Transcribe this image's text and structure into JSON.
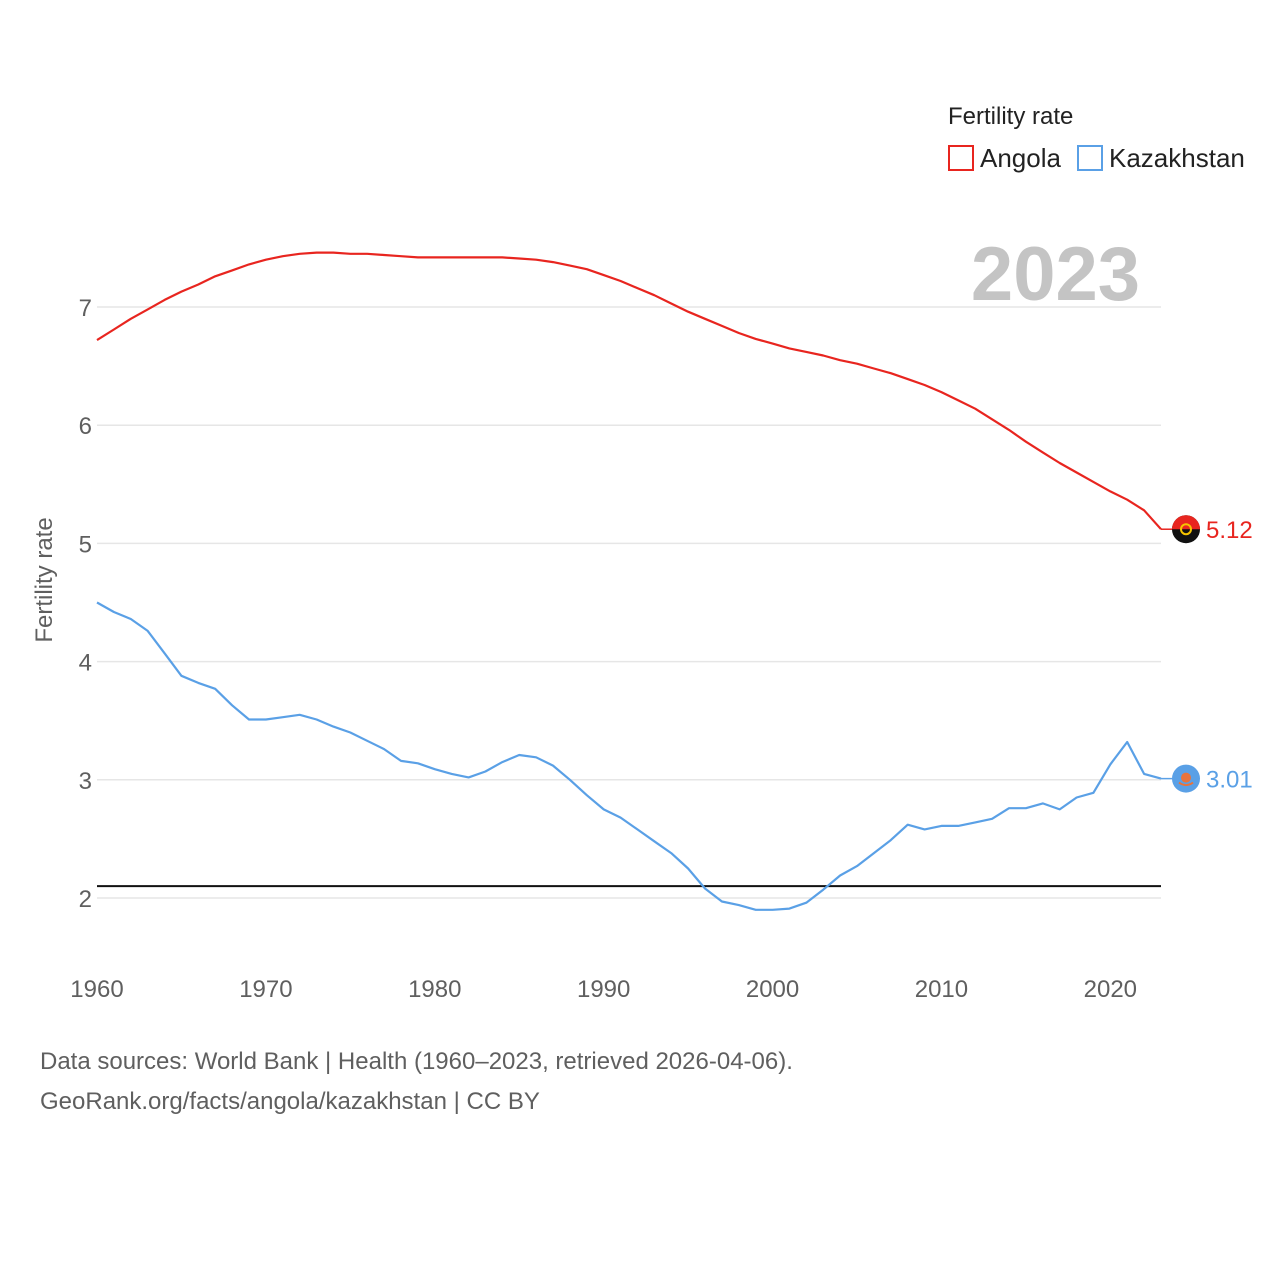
{
  "chart_data": {
    "type": "line",
    "title": "",
    "ylabel": "Fertility rate",
    "xlabel": "",
    "xlim": [
      1960,
      2023
    ],
    "ylim": [
      1.5,
      7.8
    ],
    "y_ticks": [
      2,
      3,
      4,
      5,
      6,
      7
    ],
    "x_ticks": [
      1960,
      1970,
      1980,
      1990,
      2000,
      2010,
      2020
    ],
    "grid": true,
    "reference_line": {
      "y": 2.1,
      "color": "#111111"
    },
    "legend": {
      "title": "Fertility rate",
      "position": "top-right",
      "entries": [
        {
          "name": "Angola",
          "color": "#e8251f"
        },
        {
          "name": "Kazakhstan",
          "color": "#5aa0e6"
        }
      ]
    },
    "year_overlay": "2023",
    "x": [
      1960,
      1961,
      1962,
      1963,
      1964,
      1965,
      1966,
      1967,
      1968,
      1969,
      1970,
      1971,
      1972,
      1973,
      1974,
      1975,
      1976,
      1977,
      1978,
      1979,
      1980,
      1981,
      1982,
      1983,
      1984,
      1985,
      1986,
      1987,
      1988,
      1989,
      1990,
      1991,
      1992,
      1993,
      1994,
      1995,
      1996,
      1997,
      1998,
      1999,
      2000,
      2001,
      2002,
      2003,
      2004,
      2005,
      2006,
      2007,
      2008,
      2009,
      2010,
      2011,
      2012,
      2013,
      2014,
      2015,
      2016,
      2017,
      2018,
      2019,
      2020,
      2021,
      2022,
      2023
    ],
    "series": [
      {
        "name": "Angola",
        "color": "#e8251f",
        "end_label": "5.12",
        "values": [
          6.72,
          6.81,
          6.9,
          6.98,
          7.06,
          7.13,
          7.19,
          7.26,
          7.31,
          7.36,
          7.4,
          7.43,
          7.45,
          7.46,
          7.46,
          7.45,
          7.45,
          7.44,
          7.43,
          7.42,
          7.42,
          7.42,
          7.42,
          7.42,
          7.42,
          7.41,
          7.4,
          7.38,
          7.35,
          7.32,
          7.27,
          7.22,
          7.16,
          7.1,
          7.03,
          6.96,
          6.9,
          6.84,
          6.78,
          6.73,
          6.69,
          6.65,
          6.62,
          6.59,
          6.55,
          6.52,
          6.48,
          6.44,
          6.39,
          6.34,
          6.28,
          6.21,
          6.14,
          6.05,
          5.96,
          5.86,
          5.77,
          5.68,
          5.6,
          5.52,
          5.44,
          5.37,
          5.28,
          5.12
        ]
      },
      {
        "name": "Kazakhstan",
        "color": "#5aa0e6",
        "end_label": "3.01",
        "values": [
          4.5,
          4.42,
          4.36,
          4.26,
          4.07,
          3.88,
          3.82,
          3.77,
          3.63,
          3.51,
          3.51,
          3.53,
          3.55,
          3.51,
          3.45,
          3.4,
          3.33,
          3.26,
          3.16,
          3.14,
          3.09,
          3.05,
          3.02,
          3.07,
          3.15,
          3.21,
          3.19,
          3.12,
          3.0,
          2.87,
          2.75,
          2.68,
          2.58,
          2.48,
          2.38,
          2.25,
          2.08,
          1.97,
          1.94,
          1.9,
          1.9,
          1.91,
          1.96,
          2.07,
          2.19,
          2.27,
          2.38,
          2.49,
          2.62,
          2.58,
          2.61,
          2.61,
          2.64,
          2.67,
          2.76,
          2.76,
          2.8,
          2.75,
          2.85,
          2.89,
          3.13,
          3.32,
          3.05,
          3.01
        ]
      }
    ]
  },
  "footer": {
    "line1": "Data sources: World Bank | Health (1960–2023, retrieved 2026-04-06).",
    "line2": "GeoRank.org/facts/angola/kazakhstan | CC BY"
  }
}
